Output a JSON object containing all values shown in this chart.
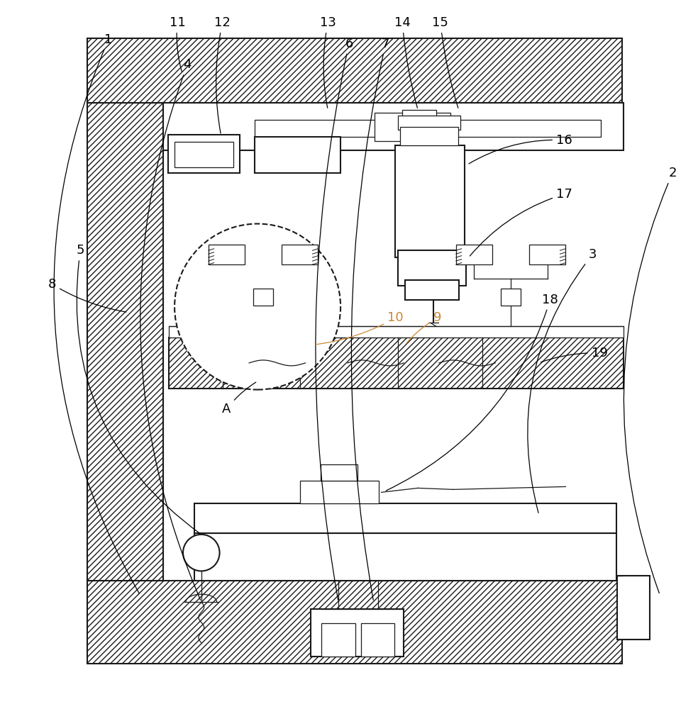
{
  "bg_color": "#ffffff",
  "line_color": "#1a1a1a",
  "orange_color": "#cc8833",
  "figsize": [
    9.84,
    10.0
  ],
  "dpi": 100
}
